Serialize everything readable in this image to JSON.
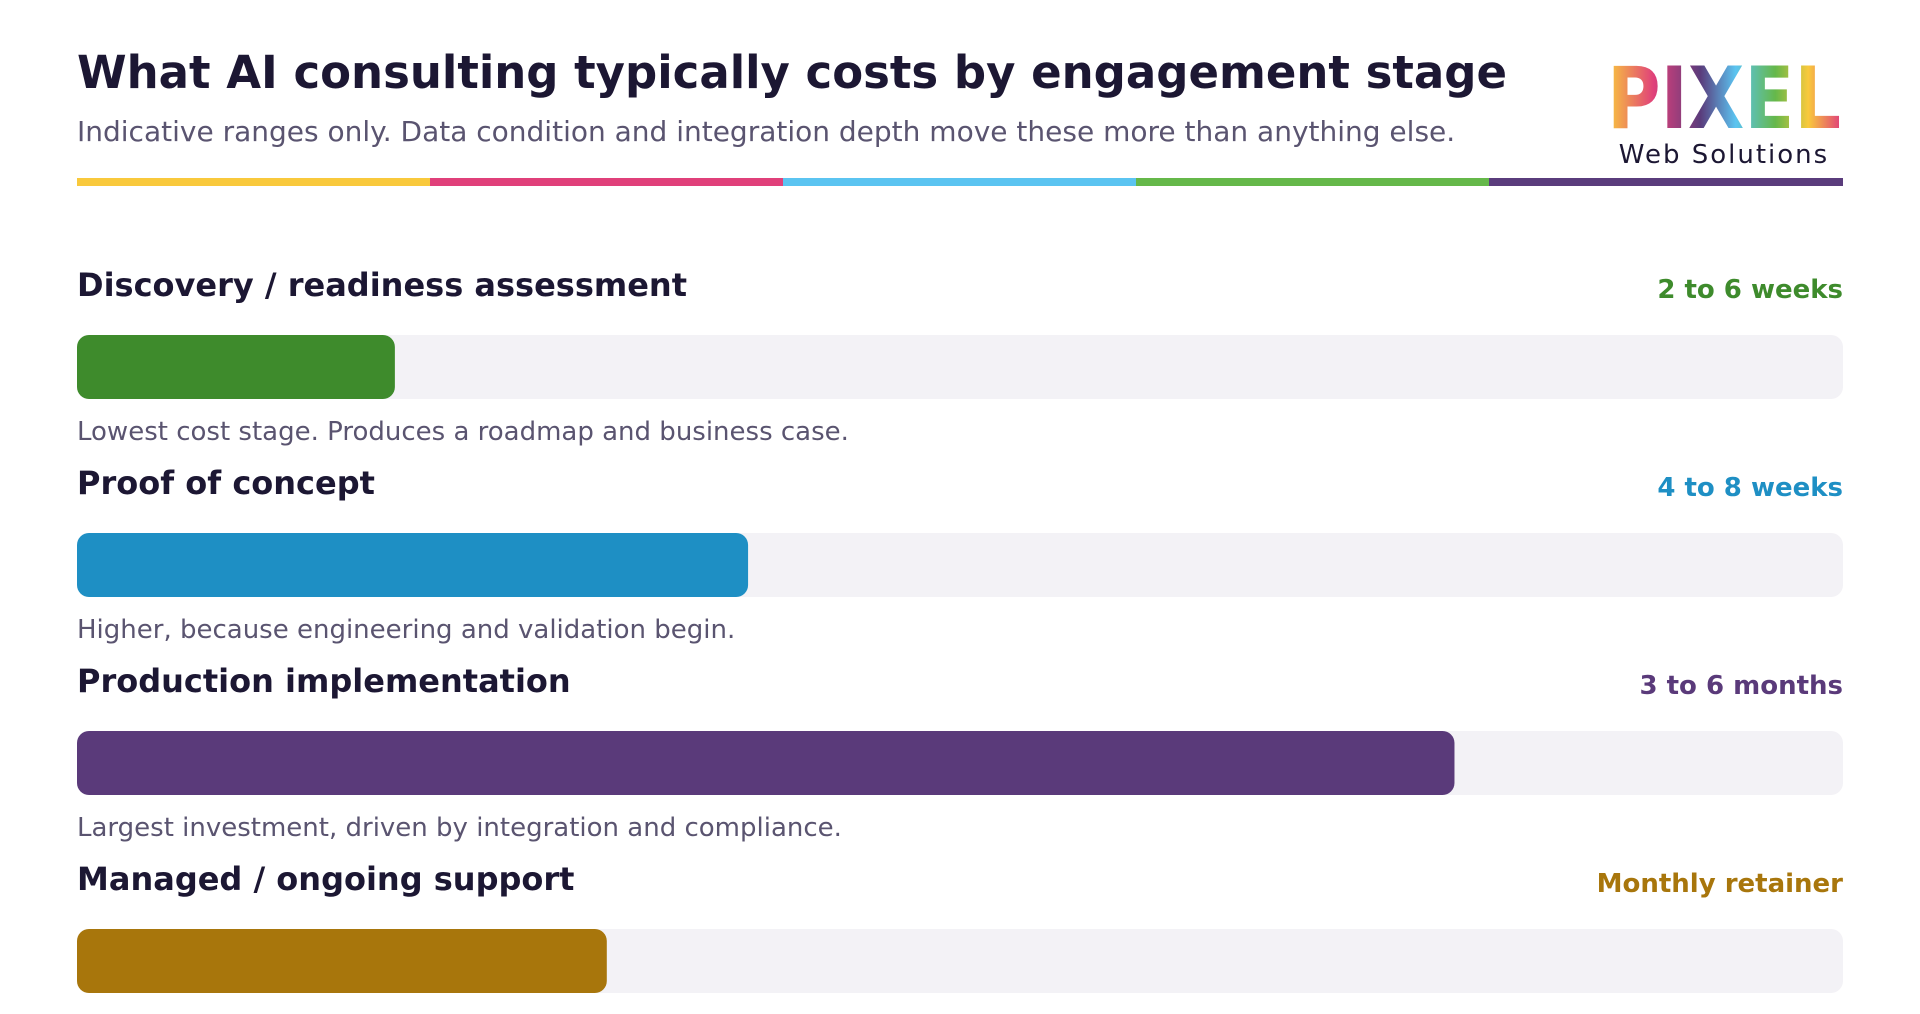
{
  "chart_data": {
    "type": "bar",
    "title": "What AI consulting typically costs by engagement stage",
    "subtitle": "Indicative ranges only. Data condition and integration depth move these more than anything else.",
    "logo": {
      "wordmark": "PIXEL",
      "tagline": "Web Solutions"
    },
    "categories": [
      "Discovery / readiness assessment",
      "Proof of concept",
      "Production implementation",
      "Managed / ongoing support"
    ],
    "durations": [
      "2 to 6 weeks",
      "4 to 8 weeks",
      "3 to 6 months",
      "Monthly retainer"
    ],
    "descriptions": [
      "Lowest cost stage. Produces a roadmap and business case.",
      "Higher, because engineering and validation begin.",
      "Largest investment, driven by integration and compliance.",
      null
    ],
    "values": [
      18,
      38,
      78,
      30
    ],
    "colors": [
      "#3e8b2c",
      "#1e8fc4",
      "#5a3a7a",
      "#a8760c"
    ],
    "xlim": [
      0,
      100
    ]
  }
}
